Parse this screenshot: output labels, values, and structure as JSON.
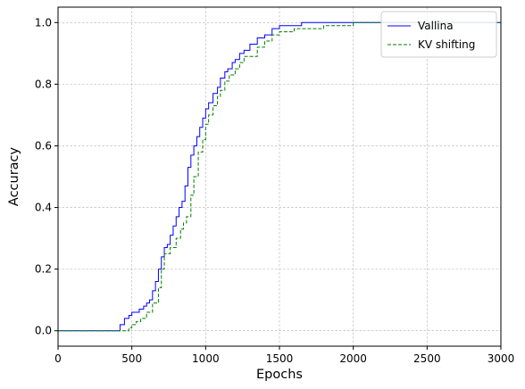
{
  "chart_data": {
    "type": "line",
    "title": "",
    "xlabel": "Epochs",
    "ylabel": "Accuracy",
    "xlim": [
      0,
      3000
    ],
    "ylim": [
      -0.05,
      1.05
    ],
    "xticks": [
      0,
      500,
      1000,
      1500,
      2000,
      2500,
      3000
    ],
    "yticks": [
      0.0,
      0.2,
      0.4,
      0.6,
      0.8,
      1.0
    ],
    "xtick_labels": [
      "0",
      "500",
      "1000",
      "1500",
      "2000",
      "2500",
      "3000"
    ],
    "ytick_labels": [
      "0.0",
      "0.2",
      "0.4",
      "0.6",
      "0.8",
      "1.0"
    ],
    "grid": true,
    "legend_position": "top-right",
    "series": [
      {
        "name": "Vallina",
        "color": "#0000ff",
        "style": "solid",
        "x": [
          0,
          400,
          420,
          450,
          480,
          500,
          520,
          550,
          580,
          600,
          620,
          640,
          660,
          680,
          700,
          720,
          740,
          760,
          780,
          800,
          820,
          840,
          860,
          880,
          900,
          920,
          940,
          960,
          980,
          1000,
          1020,
          1050,
          1080,
          1100,
          1130,
          1150,
          1180,
          1200,
          1230,
          1260,
          1300,
          1350,
          1400,
          1450,
          1500,
          1550,
          1600,
          1650,
          1700,
          1800,
          1950,
          2000,
          2200,
          2500,
          3000
        ],
        "y": [
          0.0,
          0.0,
          0.02,
          0.04,
          0.05,
          0.06,
          0.06,
          0.07,
          0.08,
          0.09,
          0.1,
          0.13,
          0.16,
          0.2,
          0.24,
          0.27,
          0.28,
          0.31,
          0.34,
          0.37,
          0.4,
          0.42,
          0.47,
          0.53,
          0.57,
          0.6,
          0.63,
          0.66,
          0.69,
          0.72,
          0.74,
          0.77,
          0.79,
          0.82,
          0.84,
          0.85,
          0.87,
          0.88,
          0.9,
          0.91,
          0.93,
          0.95,
          0.96,
          0.98,
          0.99,
          0.99,
          0.99,
          1.0,
          1.0,
          1.0,
          1.0,
          1.0,
          1.0,
          1.0,
          1.0
        ]
      },
      {
        "name": "KV shifting",
        "color": "#008000",
        "style": "dashed",
        "x": [
          0,
          450,
          480,
          500,
          530,
          560,
          600,
          640,
          680,
          700,
          720,
          760,
          800,
          830,
          850,
          870,
          900,
          920,
          950,
          980,
          1000,
          1020,
          1050,
          1080,
          1100,
          1130,
          1160,
          1200,
          1230,
          1260,
          1300,
          1350,
          1400,
          1450,
          1500,
          1550,
          1600,
          1700,
          1800,
          1950,
          2000,
          2500,
          3000
        ],
        "y": [
          0.0,
          0.0,
          0.01,
          0.02,
          0.03,
          0.04,
          0.06,
          0.09,
          0.14,
          0.2,
          0.25,
          0.27,
          0.3,
          0.33,
          0.35,
          0.37,
          0.44,
          0.5,
          0.58,
          0.62,
          0.67,
          0.7,
          0.73,
          0.76,
          0.78,
          0.81,
          0.83,
          0.85,
          0.87,
          0.89,
          0.89,
          0.92,
          0.94,
          0.96,
          0.97,
          0.97,
          0.98,
          0.98,
          0.99,
          0.99,
          1.0,
          1.0,
          1.0
        ]
      }
    ]
  }
}
